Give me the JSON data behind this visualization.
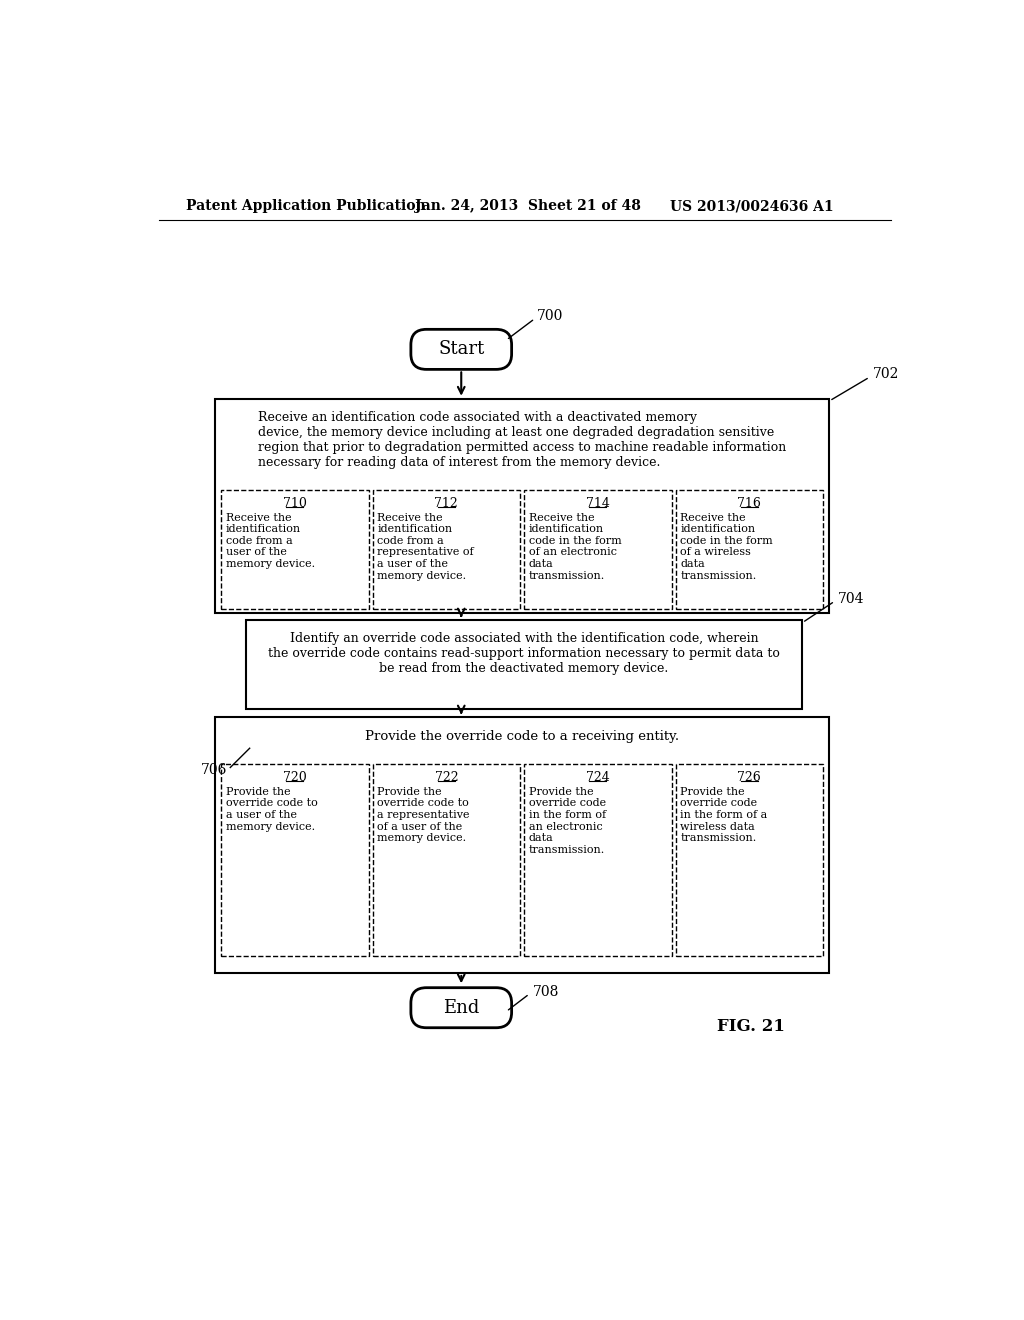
{
  "bg_color": "#ffffff",
  "header_left": "Patent Application Publication",
  "header_mid": "Jan. 24, 2013  Sheet 21 of 48",
  "header_right": "US 2013/0024636 A1",
  "fig_label": "FIG. 21",
  "start_label": "Start",
  "start_num": "700",
  "end_label": "End",
  "end_num": "708",
  "box702_num": "702",
  "box702_text": "Receive an identification code associated with a deactivated memory\ndevice, the memory device including at least one degraded degradation sensitive\nregion that prior to degradation permitted access to machine readable information\nnecessary for reading data of interest from the memory device.",
  "box704_num": "704",
  "box704_text": "Identify an override code associated with the identification code, wherein\nthe override code contains read-support information necessary to permit data to\nbe read from the deactivated memory device.",
  "box706_num": "706",
  "box706_header": "Provide the override code to a receiving entity.",
  "sub710_num": "710",
  "sub710_text": "Receive the\nidentification\ncode from a\nuser of the\nmemory device.",
  "sub712_num": "712",
  "sub712_text": "Receive the\nidentification\ncode from a\nrepresentative of\na user of the\nmemory device.",
  "sub714_num": "714",
  "sub714_text": "Receive the\nidentification\ncode in the form\nof an electronic\ndata\ntransmission.",
  "sub716_num": "716",
  "sub716_text": "Receive the\nidentification\ncode in the form\nof a wireless\ndata\ntransmission.",
  "sub720_num": "720",
  "sub720_text": "Provide the\noverride code to\na user of the\nmemory device.",
  "sub722_num": "722",
  "sub722_text": "Provide the\noverride code to\na representative\nof a user of the\nmemory device.",
  "sub724_num": "724",
  "sub724_text": "Provide the\noverride code\nin the form of\nan electronic\ndata\ntransmission.",
  "sub726_num": "726",
  "sub726_text": "Provide the\noverride code\nin the form of a\nwireless data\ntransmission."
}
